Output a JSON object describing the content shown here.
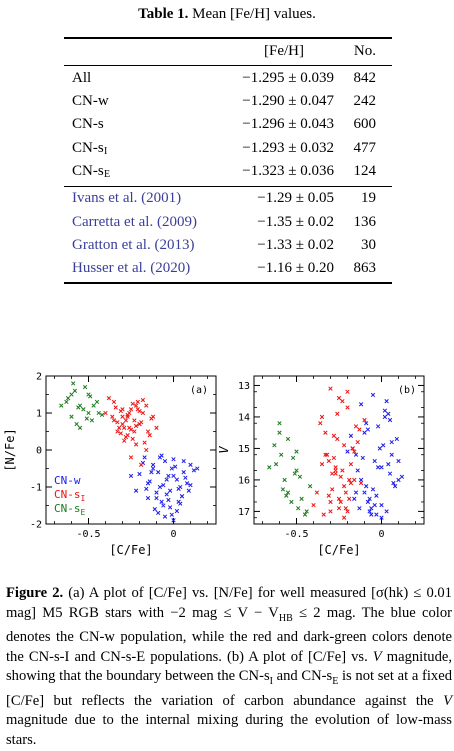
{
  "table": {
    "caption_label": "Table 1.",
    "caption_text": "Mean [Fe/H] values.",
    "headers": {
      "feh": "[Fe/H]",
      "no": "No."
    },
    "rows": [
      {
        "label": "All",
        "value": "−1.295 ± 0.039",
        "n": "842",
        "ref": false
      },
      {
        "label": "CN-w",
        "value": "−1.290 ± 0.047",
        "n": "242",
        "ref": false
      },
      {
        "label": "CN-s",
        "value": "−1.296 ± 0.043",
        "n": "600",
        "ref": false
      },
      {
        "label": "CN-s",
        "sub": "I",
        "value": "−1.293 ± 0.032",
        "n": "477",
        "ref": false
      },
      {
        "label": "CN-s",
        "sub": "E",
        "value": "−1.323 ± 0.036",
        "n": "124",
        "ref": false
      },
      {
        "label": "Ivans et al. (2001)",
        "value": "−1.29 ± 0.05",
        "n": "19",
        "ref": true
      },
      {
        "label": "Carretta et al. (2009)",
        "value": "−1.35 ± 0.02",
        "n": "136",
        "ref": true
      },
      {
        "label": "Gratton et al. (2013)",
        "value": "−1.33 ± 0.02",
        "n": "30",
        "ref": true
      },
      {
        "label": "Husser et al. (2020)",
        "value": "−1.16 ± 0.20",
        "n": "863",
        "ref": true
      }
    ]
  },
  "colors": {
    "blue": "#1a1aee",
    "red": "#ee1111",
    "green": "#1a7a1a",
    "ref": "#3a3f9a"
  },
  "chart_data": [
    {
      "type": "scatter",
      "panel_label": "(a)",
      "xlabel": "[C/Fe]",
      "ylabel": "[N/Fe]",
      "xlim": [
        -0.75,
        0.25
      ],
      "ylim": [
        -2,
        2
      ],
      "xticks": [
        -0.5,
        0
      ],
      "yticks": [
        -2,
        -1,
        0,
        1,
        2
      ],
      "xtick_labels": [
        "-0.5",
        "0"
      ],
      "ytick_labels": [
        "-2",
        "-1",
        "0",
        "1",
        "2"
      ],
      "legend": [
        {
          "text": "CN-w",
          "color": "blue"
        },
        {
          "text": "CN-s",
          "sub": "I",
          "color": "red"
        },
        {
          "text": "CN-s",
          "sub": "E",
          "color": "green"
        }
      ],
      "series": [
        {
          "name": "CN-w",
          "color": "blue",
          "x": [
            -0.05,
            -0.12,
            0.02,
            -0.08,
            0.06,
            -0.15,
            -0.02,
            0.1,
            -0.1,
            0.0,
            -0.06,
            0.04,
            -0.18,
            -0.04,
            0.08,
            -0.13,
            0.03,
            -0.09,
            -0.01,
            0.05,
            -0.16,
            -0.07,
            0.01,
            -0.11,
            0.07,
            -0.03,
            -0.14,
            0.09,
            -0.05,
            0.0,
            -0.2,
            0.12,
            -0.08,
            -0.02,
            0.04,
            -0.12,
            -0.06,
            0.02,
            -0.1,
            0.06,
            -0.15,
            -0.03,
            0.0,
            -0.09,
            0.05,
            -0.17,
            -0.04,
            0.1,
            -0.07,
            0.03,
            -0.22,
            -0.25,
            -0.01,
            0.14
          ],
          "y": [
            -0.3,
            -0.5,
            -0.8,
            -0.2,
            -0.6,
            -0.9,
            -1.1,
            -0.4,
            -1.3,
            -0.7,
            -1.5,
            -1.0,
            -0.35,
            -1.2,
            -0.9,
            -0.6,
            -1.4,
            -1.7,
            -0.5,
            -1.25,
            -1.05,
            -0.15,
            -0.45,
            -1.6,
            -0.75,
            -1.35,
            -0.85,
            -1.1,
            -1.8,
            -0.25,
            -0.65,
            -0.55,
            -1.0,
            -1.55,
            -1.45,
            -0.4,
            -0.95,
            -1.65,
            -1.15,
            -0.3,
            -1.3,
            -0.7,
            -1.9,
            -0.6,
            -1.25,
            -0.2,
            -0.8,
            -0.95,
            -1.4,
            -1.05,
            -1.1,
            -0.7,
            -1.75,
            -0.5
          ]
        },
        {
          "name": "CN-sI",
          "color": "red",
          "x": [
            -0.3,
            -0.25,
            -0.2,
            -0.35,
            -0.15,
            -0.28,
            -0.22,
            -0.32,
            -0.18,
            -0.27,
            -0.12,
            -0.38,
            -0.24,
            -0.3,
            -0.2,
            -0.26,
            -0.33,
            -0.16,
            -0.23,
            -0.29,
            -0.21,
            -0.36,
            -0.14,
            -0.31,
            -0.19,
            -0.25,
            -0.34,
            -0.17,
            -0.27,
            -0.22,
            -0.4,
            -0.13,
            -0.28,
            -0.24,
            -0.31,
            -0.2,
            -0.26,
            -0.35,
            -0.18,
            -0.3,
            -0.23,
            -0.1,
            -0.27,
            -0.21,
            -0.33,
            -0.16,
            -0.25,
            -0.29,
            -0.19,
            -0.22
          ],
          "y": [
            0.9,
            1.1,
            0.7,
            1.3,
            0.5,
            0.8,
            1.2,
            0.6,
            1.0,
            0.4,
            0.9,
            1.4,
            0.3,
            1.1,
            0.7,
            1.0,
            0.5,
            1.2,
            0.8,
            0.6,
            1.3,
            0.9,
            0.4,
            1.05,
            0.75,
            0.55,
            1.15,
            0.2,
            0.95,
            0.65,
            1.0,
            0.85,
            0.35,
            1.25,
            0.45,
            1.05,
            0.6,
            0.8,
            1.35,
            0.7,
            0.5,
            0.6,
            0.9,
            1.1,
            0.75,
            0.0,
            -0.2,
            0.25,
            -0.4,
            0.15
          ]
        },
        {
          "name": "CN-sE",
          "color": "green",
          "x": [
            -0.6,
            -0.55,
            -0.5,
            -0.62,
            -0.48,
            -0.58,
            -0.53,
            -0.45,
            -0.6,
            -0.52,
            -0.57,
            -0.47,
            -0.63,
            -0.5,
            -0.55,
            -0.44,
            -0.59,
            -0.51,
            -0.56,
            -0.49,
            -0.66,
            -0.42
          ],
          "y": [
            1.5,
            1.2,
            1.0,
            1.4,
            0.8,
            1.6,
            1.1,
            1.3,
            0.9,
            1.7,
            0.7,
            1.2,
            1.3,
            1.5,
            0.6,
            1.0,
            1.8,
            0.85,
            1.15,
            1.45,
            1.2,
            0.95
          ]
        }
      ]
    },
    {
      "type": "scatter",
      "panel_label": "(b)",
      "xlabel": "[C/Fe]",
      "ylabel": "V",
      "xlim": [
        -0.75,
        0.25
      ],
      "ylim": [
        17.4,
        12.7
      ],
      "xticks": [
        -0.5,
        0
      ],
      "yticks": [
        13,
        14,
        15,
        16,
        17
      ],
      "xtick_labels": [
        "-0.5",
        "0"
      ],
      "ytick_labels": [
        "13",
        "14",
        "15",
        "16",
        "17"
      ],
      "series": [
        {
          "name": "CN-w",
          "color": "blue",
          "x": [
            -0.05,
            -0.12,
            0.02,
            -0.08,
            0.06,
            -0.15,
            -0.02,
            0.1,
            -0.1,
            0.0,
            -0.06,
            0.04,
            -0.18,
            -0.04,
            0.08,
            -0.13,
            0.03,
            -0.09,
            -0.01,
            0.05,
            -0.16,
            -0.07,
            0.01,
            -0.11,
            0.07,
            -0.03,
            -0.14,
            0.09,
            -0.05,
            0.0,
            -0.2,
            0.12,
            -0.08,
            -0.02,
            0.04,
            -0.12,
            -0.06,
            0.02,
            -0.1,
            0.06,
            -0.15,
            -0.03,
            0.0,
            -0.09,
            0.05,
            -0.17,
            -0.04,
            0.1,
            -0.07,
            0.03
          ],
          "y": [
            13.3,
            13.6,
            14.0,
            14.4,
            14.8,
            15.2,
            15.6,
            16.0,
            16.4,
            16.8,
            17.1,
            13.9,
            14.6,
            15.4,
            16.2,
            16.9,
            13.5,
            14.2,
            15.0,
            15.8,
            16.6,
            17.0,
            14.9,
            15.3,
            16.1,
            16.5,
            15.7,
            14.7,
            16.3,
            17.2,
            15.1,
            15.9,
            16.7,
            14.3,
            15.5,
            16.0,
            16.9,
            13.8,
            14.5,
            15.2,
            16.4,
            17.1,
            15.6,
            16.2,
            14.1,
            15.0,
            16.8,
            15.4,
            16.6,
            17.0
          ]
        },
        {
          "name": "CN-sI",
          "color": "red",
          "x": [
            -0.3,
            -0.25,
            -0.2,
            -0.35,
            -0.15,
            -0.28,
            -0.22,
            -0.32,
            -0.18,
            -0.27,
            -0.12,
            -0.38,
            -0.24,
            -0.3,
            -0.2,
            -0.26,
            -0.33,
            -0.16,
            -0.23,
            -0.29,
            -0.21,
            -0.36,
            -0.14,
            -0.31,
            -0.19,
            -0.25,
            -0.34,
            -0.17,
            -0.27,
            -0.22,
            -0.4,
            -0.13,
            -0.28,
            -0.24,
            -0.31,
            -0.2,
            -0.26,
            -0.35,
            -0.18,
            -0.3,
            -0.23,
            -0.1,
            -0.27,
            -0.21,
            -0.33,
            -0.16,
            -0.25,
            -0.29,
            -0.19,
            -0.22
          ],
          "y": [
            13.1,
            13.4,
            13.7,
            14.0,
            14.3,
            14.6,
            14.9,
            15.2,
            15.5,
            15.8,
            16.1,
            16.4,
            16.7,
            17.0,
            13.2,
            13.9,
            14.5,
            15.1,
            15.7,
            16.3,
            16.9,
            14.2,
            14.8,
            15.4,
            16.0,
            16.6,
            17.1,
            15.0,
            15.6,
            16.2,
            16.8,
            14.4,
            15.3,
            15.9,
            16.5,
            17.0,
            14.7,
            15.5,
            16.1,
            16.7,
            13.5,
            14.1,
            15.7,
            16.4,
            15.2,
            16.0,
            16.9,
            15.8,
            16.6,
            17.2
          ]
        },
        {
          "name": "CN-sE",
          "color": "green",
          "x": [
            -0.6,
            -0.55,
            -0.5,
            -0.62,
            -0.48,
            -0.58,
            -0.53,
            -0.45,
            -0.6,
            -0.52,
            -0.57,
            -0.47,
            -0.63,
            -0.5,
            -0.55,
            -0.44,
            -0.59,
            -0.51,
            -0.56,
            -0.49,
            -0.66,
            -0.42
          ],
          "y": [
            14.2,
            14.7,
            15.1,
            15.5,
            15.9,
            16.3,
            16.7,
            17.1,
            14.5,
            15.3,
            16.0,
            16.6,
            14.9,
            15.7,
            16.4,
            17.0,
            15.2,
            15.8,
            16.5,
            16.9,
            15.6,
            16.2
          ]
        }
      ]
    }
  ],
  "figure": {
    "caption_label": "Figure 2.",
    "caption_parts": [
      "(a) A plot of [C/Fe] vs. [N/Fe] for well measured [σ(hk) ≤ 0.01 mag] M5 RGB stars with −2 mag ≤ V − V",
      "HB",
      " ≤ 2 mag. The blue color denotes the CN-w population, while the red and dark-green colors denote the CN-s-I and CN-s-E populations. (b) A plot of [C/Fe] vs. ",
      "V",
      " magnitude, showing that the boundary between the CN-s",
      "I",
      " and CN-s",
      "E",
      " is not set at a fixed [C/Fe] but reflects the variation of carbon abundance against the ",
      "V",
      " magnitude due to the internal mixing during the evolution of low-mass stars."
    ]
  }
}
